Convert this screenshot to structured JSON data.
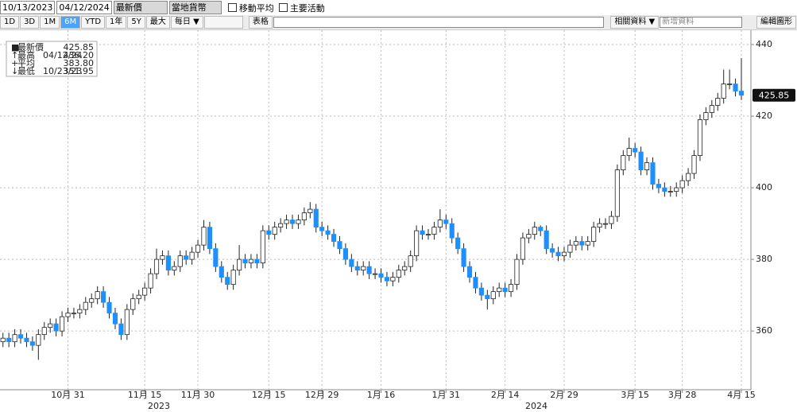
{
  "toolbar": {
    "start_date": "10/13/2023",
    "end_date": "04/12/2024",
    "price_field": "最新價",
    "currency": "當地貨幣",
    "options": [
      "移動平均",
      "主要活動"
    ],
    "periods": [
      "1D",
      "3D",
      "1M",
      "6M",
      "YTD",
      "1年",
      "5Y",
      "最大"
    ],
    "active_period": "6M",
    "frequency": "每日 ▼",
    "table": "表格",
    "related": "相關資料 ▼",
    "add_data": "新增資料",
    "edit": "編輯圖形"
  },
  "chart_data": {
    "type": "candlestick",
    "legend": [
      {
        "name": "最新價",
        "value": "425.85"
      },
      {
        "name": "最高",
        "date": "04/12/24",
        "value": "436.20"
      },
      {
        "name": "平均",
        "value": "383.80"
      },
      {
        "name": "最低",
        "date": "10/23/23",
        "value": "351.95"
      }
    ],
    "categories": [
      null,
      null,
      null,
      null,
      null,
      null,
      null,
      null,
      null,
      null,
      null,
      "10月 31",
      null,
      null,
      null,
      null,
      null,
      null,
      null,
      null,
      null,
      null,
      null,
      null,
      "11月 15",
      null,
      null,
      null,
      null,
      null,
      null,
      null,
      null,
      "11月 30",
      null,
      null,
      null,
      null,
      null,
      null,
      null,
      null,
      null,
      null,
      null,
      "12月 15",
      null,
      null,
      null,
      null,
      null,
      null,
      null,
      null,
      "12月 29",
      null,
      null,
      null,
      null,
      null,
      null,
      null,
      null,
      null,
      "1月 16",
      null,
      null,
      null,
      null,
      null,
      null,
      null,
      null,
      null,
      null,
      "1月 31",
      null,
      null,
      null,
      null,
      null,
      null,
      null,
      null,
      null,
      "2月 14",
      null,
      null,
      null,
      null,
      null,
      null,
      null,
      null,
      null,
      "2月 29",
      null,
      null,
      null,
      null,
      null,
      null,
      null,
      null,
      null,
      null,
      null,
      "3月 15",
      null,
      null,
      null,
      null,
      null,
      null,
      null,
      "3月 28",
      null,
      null,
      null,
      null,
      null,
      null,
      null,
      null,
      null,
      "4月 15"
    ],
    "open": [
      357,
      358,
      357,
      359,
      358,
      357,
      356,
      359,
      361,
      362,
      360,
      364,
      365,
      365,
      366,
      368,
      369,
      371,
      368,
      365,
      362,
      359,
      366,
      369,
      370,
      372,
      376,
      380,
      381,
      377,
      378,
      381,
      380,
      382,
      384,
      389,
      383,
      378,
      375,
      373,
      377,
      380,
      379,
      380,
      379,
      388,
      387,
      389,
      390,
      391,
      390,
      391,
      393,
      394,
      389,
      388,
      387,
      385,
      383,
      380,
      378,
      377,
      378,
      376,
      376,
      375,
      374,
      375,
      377,
      378,
      381,
      388,
      387,
      387,
      389,
      391,
      390,
      386,
      383,
      378,
      375,
      372,
      370,
      369,
      371,
      372,
      371,
      373,
      380,
      386,
      387,
      389,
      388,
      383,
      382,
      381,
      382,
      384,
      385,
      384,
      385,
      389,
      390,
      390,
      392,
      405,
      409,
      411,
      410,
      405,
      407,
      401,
      400,
      399,
      399,
      400,
      402,
      404,
      409,
      419,
      421,
      423,
      425,
      429,
      429,
      427
    ],
    "high": [
      359.5,
      359.5,
      360.5,
      360.5,
      359.5,
      358.5,
      360.5,
      362.5,
      363.5,
      363.5,
      365.5,
      366.5,
      366.5,
      367.5,
      369.5,
      370.5,
      372.5,
      372.5,
      369.5,
      366.5,
      363.5,
      367.5,
      370.5,
      371.5,
      373.5,
      377.5,
      383,
      382.5,
      382.5,
      379.5,
      382.5,
      382.5,
      383.5,
      385.5,
      391,
      390.5,
      384.5,
      379.5,
      376.5,
      378.5,
      384,
      381.5,
      381.5,
      381.5,
      389.5,
      389.5,
      390.5,
      391.5,
      392.5,
      392.5,
      392.5,
      394.5,
      396,
      395.5,
      390.5,
      389.5,
      388.5,
      386.5,
      384.5,
      381.5,
      379.5,
      379.5,
      379.5,
      377.5,
      377.5,
      376.5,
      376.5,
      378.5,
      379.5,
      382.5,
      389.5,
      389.5,
      388.5,
      390.5,
      394,
      392.5,
      391.5,
      387.5,
      384.5,
      379.5,
      376.5,
      373.5,
      371.5,
      372.5,
      373.5,
      373.5,
      374.5,
      381.5,
      387.5,
      388.5,
      390.5,
      389.5,
      389.5,
      384.5,
      383.5,
      383.5,
      385.5,
      386.5,
      386.5,
      386.5,
      390.5,
      391.5,
      391.5,
      393.5,
      406.5,
      410.5,
      414,
      412.5,
      411.5,
      408.5,
      408.5,
      402.5,
      401.5,
      400.5,
      401.5,
      403.5,
      405.5,
      410.5,
      420.5,
      422.5,
      424.5,
      426.5,
      433,
      433,
      430.5,
      436.2
    ],
    "low": [
      355.5,
      355.5,
      355.5,
      356.5,
      355.5,
      354.5,
      351.95,
      357.5,
      359.5,
      358.5,
      358.5,
      362.5,
      363.5,
      363.5,
      364.5,
      366.5,
      367.5,
      366.5,
      363.5,
      360.5,
      357.5,
      357.5,
      364.5,
      367.5,
      368.5,
      370.5,
      374.5,
      378.5,
      375.5,
      375.5,
      376.5,
      378.5,
      378.5,
      380.5,
      382.5,
      381.5,
      376.5,
      373.5,
      371.5,
      371.5,
      375.5,
      377.5,
      377.5,
      377.5,
      377.5,
      385.5,
      385.5,
      387.5,
      388.5,
      388.5,
      388.5,
      389.5,
      391.5,
      387.5,
      386.5,
      385.5,
      383.5,
      381.5,
      378.5,
      376.5,
      375.5,
      375.5,
      374.5,
      374.5,
      373.5,
      372.5,
      372.5,
      373.5,
      375.5,
      376.5,
      379.5,
      385.5,
      385.5,
      385.5,
      387.5,
      388.5,
      384.5,
      381.5,
      376.5,
      373.5,
      370.5,
      368.5,
      366,
      367.5,
      369.5,
      369.5,
      369.5,
      371.5,
      378.5,
      384.5,
      385.5,
      386.5,
      381.5,
      380.5,
      379.5,
      379.5,
      380.5,
      382.5,
      382.5,
      382.5,
      383.5,
      387.5,
      388.5,
      388.5,
      390.5,
      403.5,
      407.5,
      408.5,
      403.5,
      403.5,
      399.5,
      398.5,
      397.5,
      397.5,
      397.5,
      398.5,
      400.5,
      402.5,
      407.5,
      417.5,
      419.5,
      421.5,
      423.5,
      427.5,
      425.5,
      424.5
    ],
    "close": [
      358,
      357,
      359,
      358,
      357,
      356,
      359,
      361,
      362,
      360,
      364,
      365,
      365,
      366,
      368,
      369,
      371,
      368,
      365,
      362,
      359,
      366,
      369,
      370,
      372,
      376,
      380,
      381,
      377,
      378,
      381,
      380,
      382,
      384,
      389,
      383,
      378,
      375,
      373,
      377,
      380,
      379,
      380,
      379,
      388,
      387,
      389,
      390,
      391,
      390,
      391,
      393,
      394,
      389,
      388,
      387,
      385,
      383,
      380,
      378,
      377,
      378,
      376,
      376,
      375,
      374,
      375,
      377,
      378,
      381,
      388,
      387,
      387,
      389,
      391,
      390,
      386,
      383,
      378,
      375,
      372,
      370,
      369,
      371,
      372,
      371,
      373,
      380,
      386,
      387,
      389,
      388,
      383,
      382,
      381,
      382,
      384,
      385,
      384,
      385,
      389,
      390,
      390,
      392,
      405,
      409,
      411,
      410,
      405,
      407,
      401,
      400,
      399,
      399,
      400,
      402,
      404,
      409,
      419,
      421,
      423,
      425,
      429,
      429,
      427,
      425.85
    ],
    "up_color": "#ffffff",
    "down_color": "#1e8fff",
    "ylim": [
      343.6,
      444
    ],
    "yticks": [
      360,
      380,
      400,
      420,
      440
    ],
    "grid": true,
    "years": [
      "2023",
      "2024"
    ]
  }
}
